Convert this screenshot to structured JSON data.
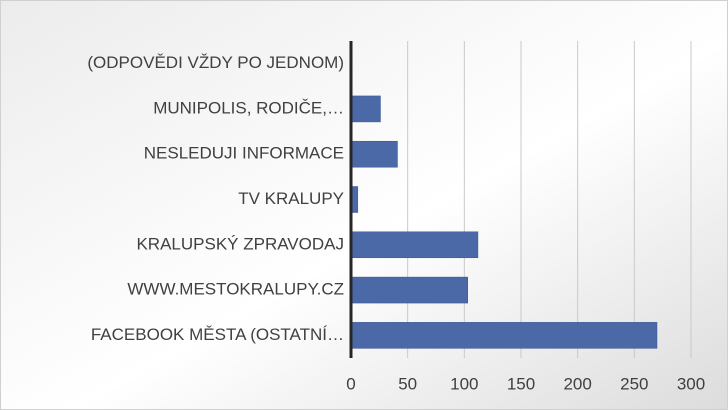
{
  "chart_data": {
    "type": "bar",
    "orientation": "horizontal",
    "categories": [
      "(ODPOVĚDI VŽDY PO JEDNOM)",
      "MUNIPOLIS, RODIČE,…",
      "NESLEDUJI INFORMACE",
      "TV KRALUPY",
      "KRALUPSKÝ ZPRAVODAJ",
      "WWW.MESTOKRALUPY.CZ",
      "FACEBOOK MĚSTA (OSTATNÍ…"
    ],
    "values": [
      null,
      26,
      41,
      6,
      112,
      103,
      270
    ],
    "color": "#4a69a6",
    "xlim": [
      0,
      300
    ],
    "xticks": [
      0,
      50,
      100,
      150,
      200,
      250,
      300
    ],
    "grid": true
  }
}
